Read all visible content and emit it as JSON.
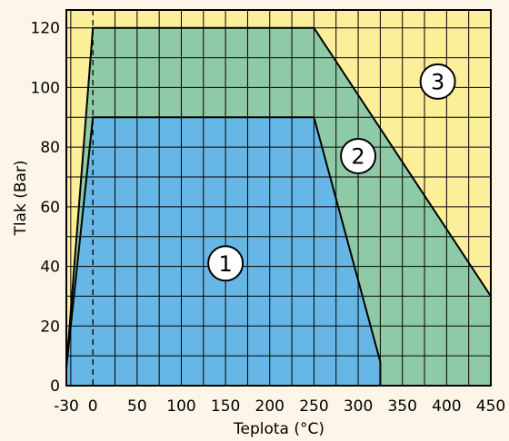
{
  "chart_data": {
    "type": "area",
    "title": "",
    "xlabel": "Teplota (°C)",
    "ylabel": "Tlak (Bar)",
    "xlim": [
      -30,
      450
    ],
    "ylim": [
      0,
      126
    ],
    "x_ticks": [
      -30,
      0,
      50,
      100,
      150,
      200,
      250,
      300,
      350,
      400,
      450
    ],
    "x_tick_labels": [
      "-30",
      "0",
      "50",
      "100",
      "150",
      "200",
      "250",
      "300",
      "350",
      "400",
      "450"
    ],
    "y_ticks": [
      0,
      20,
      40,
      60,
      80,
      100,
      120
    ],
    "y_tick_labels": [
      "0",
      "20",
      "40",
      "60",
      "80",
      "100",
      "120"
    ],
    "grid": true,
    "x_grid_step": 25,
    "y_grid_step": 10,
    "reference_line_x": 0,
    "colors": {
      "background": "#fdf6e8",
      "region_1": "#66b7e6",
      "region_2": "#8fcaa6",
      "region_3": "#fcef9a"
    },
    "regions": [
      {
        "label": "1",
        "label_at": [
          150,
          41
        ],
        "polygon": [
          [
            -30,
            0
          ],
          [
            -30,
            6
          ],
          [
            0,
            90
          ],
          [
            250,
            90
          ],
          [
            325,
            8
          ],
          [
            325,
            0
          ]
        ]
      },
      {
        "label": "2",
        "label_at": [
          300,
          77
        ],
        "polygon": [
          [
            -30,
            0
          ],
          [
            -30,
            6
          ],
          [
            0,
            120
          ],
          [
            250,
            120
          ],
          [
            450,
            30
          ],
          [
            450,
            0
          ]
        ]
      },
      {
        "label": "3",
        "label_at": [
          390,
          102
        ],
        "polygon": [
          [
            -30,
            0
          ],
          [
            -30,
            126
          ],
          [
            450,
            126
          ],
          [
            450,
            0
          ]
        ]
      }
    ]
  }
}
